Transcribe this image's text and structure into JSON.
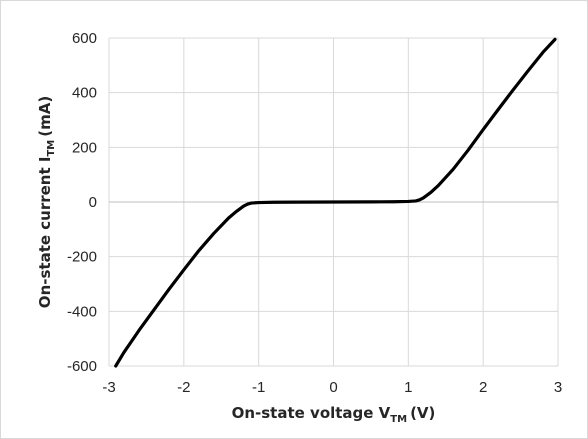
{
  "chart_data": {
    "type": "line",
    "title": "",
    "xlabel": {
      "main": "On-state voltage V",
      "sub": "TM",
      "unit": "(V)"
    },
    "ylabel": {
      "main": "On-state current I",
      "sub": "TM",
      "unit": "(mA)"
    },
    "xlim": [
      -3,
      3
    ],
    "ylim": [
      -600,
      600
    ],
    "x_ticks": [
      -3,
      -2,
      -1,
      0,
      1,
      2,
      3
    ],
    "y_ticks": [
      -600,
      -400,
      -200,
      0,
      200,
      400,
      600
    ],
    "x_tick_labels": [
      "-3",
      "-2",
      "-1",
      "0",
      "1",
      "2",
      "3"
    ],
    "y_tick_labels": [
      "-600",
      "-400",
      "-200",
      "0",
      "200",
      "400",
      "600"
    ],
    "grid": true,
    "legend": "none",
    "colors": {
      "line": "#000000",
      "grid": "#d9d9d9",
      "text": "#262626",
      "zero_axis": "#bfbfbf"
    },
    "series": [
      {
        "x": [
          -2.91,
          -2.8,
          -2.6,
          -2.4,
          -2.2,
          -2.0,
          -1.8,
          -1.6,
          -1.4,
          -1.3,
          -1.2,
          -1.15,
          -1.1,
          -1.0,
          -0.8,
          -0.5,
          0.0,
          0.5,
          0.8,
          1.0,
          1.1,
          1.15,
          1.2,
          1.3,
          1.4,
          1.6,
          1.8,
          2.0,
          2.2,
          2.4,
          2.6,
          2.8,
          2.96
        ],
        "y": [
          -600,
          -550,
          -470,
          -395,
          -320,
          -248,
          -178,
          -115,
          -58,
          -35,
          -15,
          -8,
          -4,
          -2,
          -1,
          -0.5,
          0,
          0.5,
          1,
          2,
          4,
          8,
          15,
          35,
          60,
          120,
          190,
          265,
          338,
          410,
          480,
          548,
          595
        ]
      }
    ]
  }
}
